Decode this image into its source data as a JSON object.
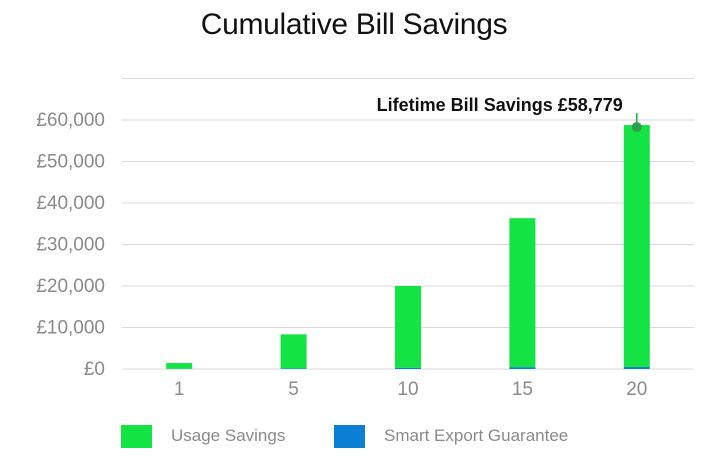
{
  "chart_data": {
    "type": "bar",
    "stacked": true,
    "title": "Cumulative Bill Savings",
    "xlabel": "",
    "ylabel": "",
    "categories": [
      "1",
      "5",
      "10",
      "15",
      "20"
    ],
    "series": [
      {
        "name": "Usage Savings",
        "color": "#14e344",
        "values": [
          1400,
          8200,
          19700,
          35900,
          58300
        ]
      },
      {
        "name": "Smart Export Guarantee",
        "color": "#0a7fd4",
        "values": [
          30,
          150,
          300,
          450,
          479
        ]
      }
    ],
    "ylim": [
      0,
      60000
    ],
    "yticks": [
      "£0",
      "£10,000",
      "£20,000",
      "£30,000",
      "£40,000",
      "£50,000",
      "£60,000"
    ],
    "grid": true,
    "legend_position": "bottom-left",
    "annotation": {
      "text": "Lifetime Bill Savings £58,779",
      "category": "20",
      "value": 58779
    }
  }
}
